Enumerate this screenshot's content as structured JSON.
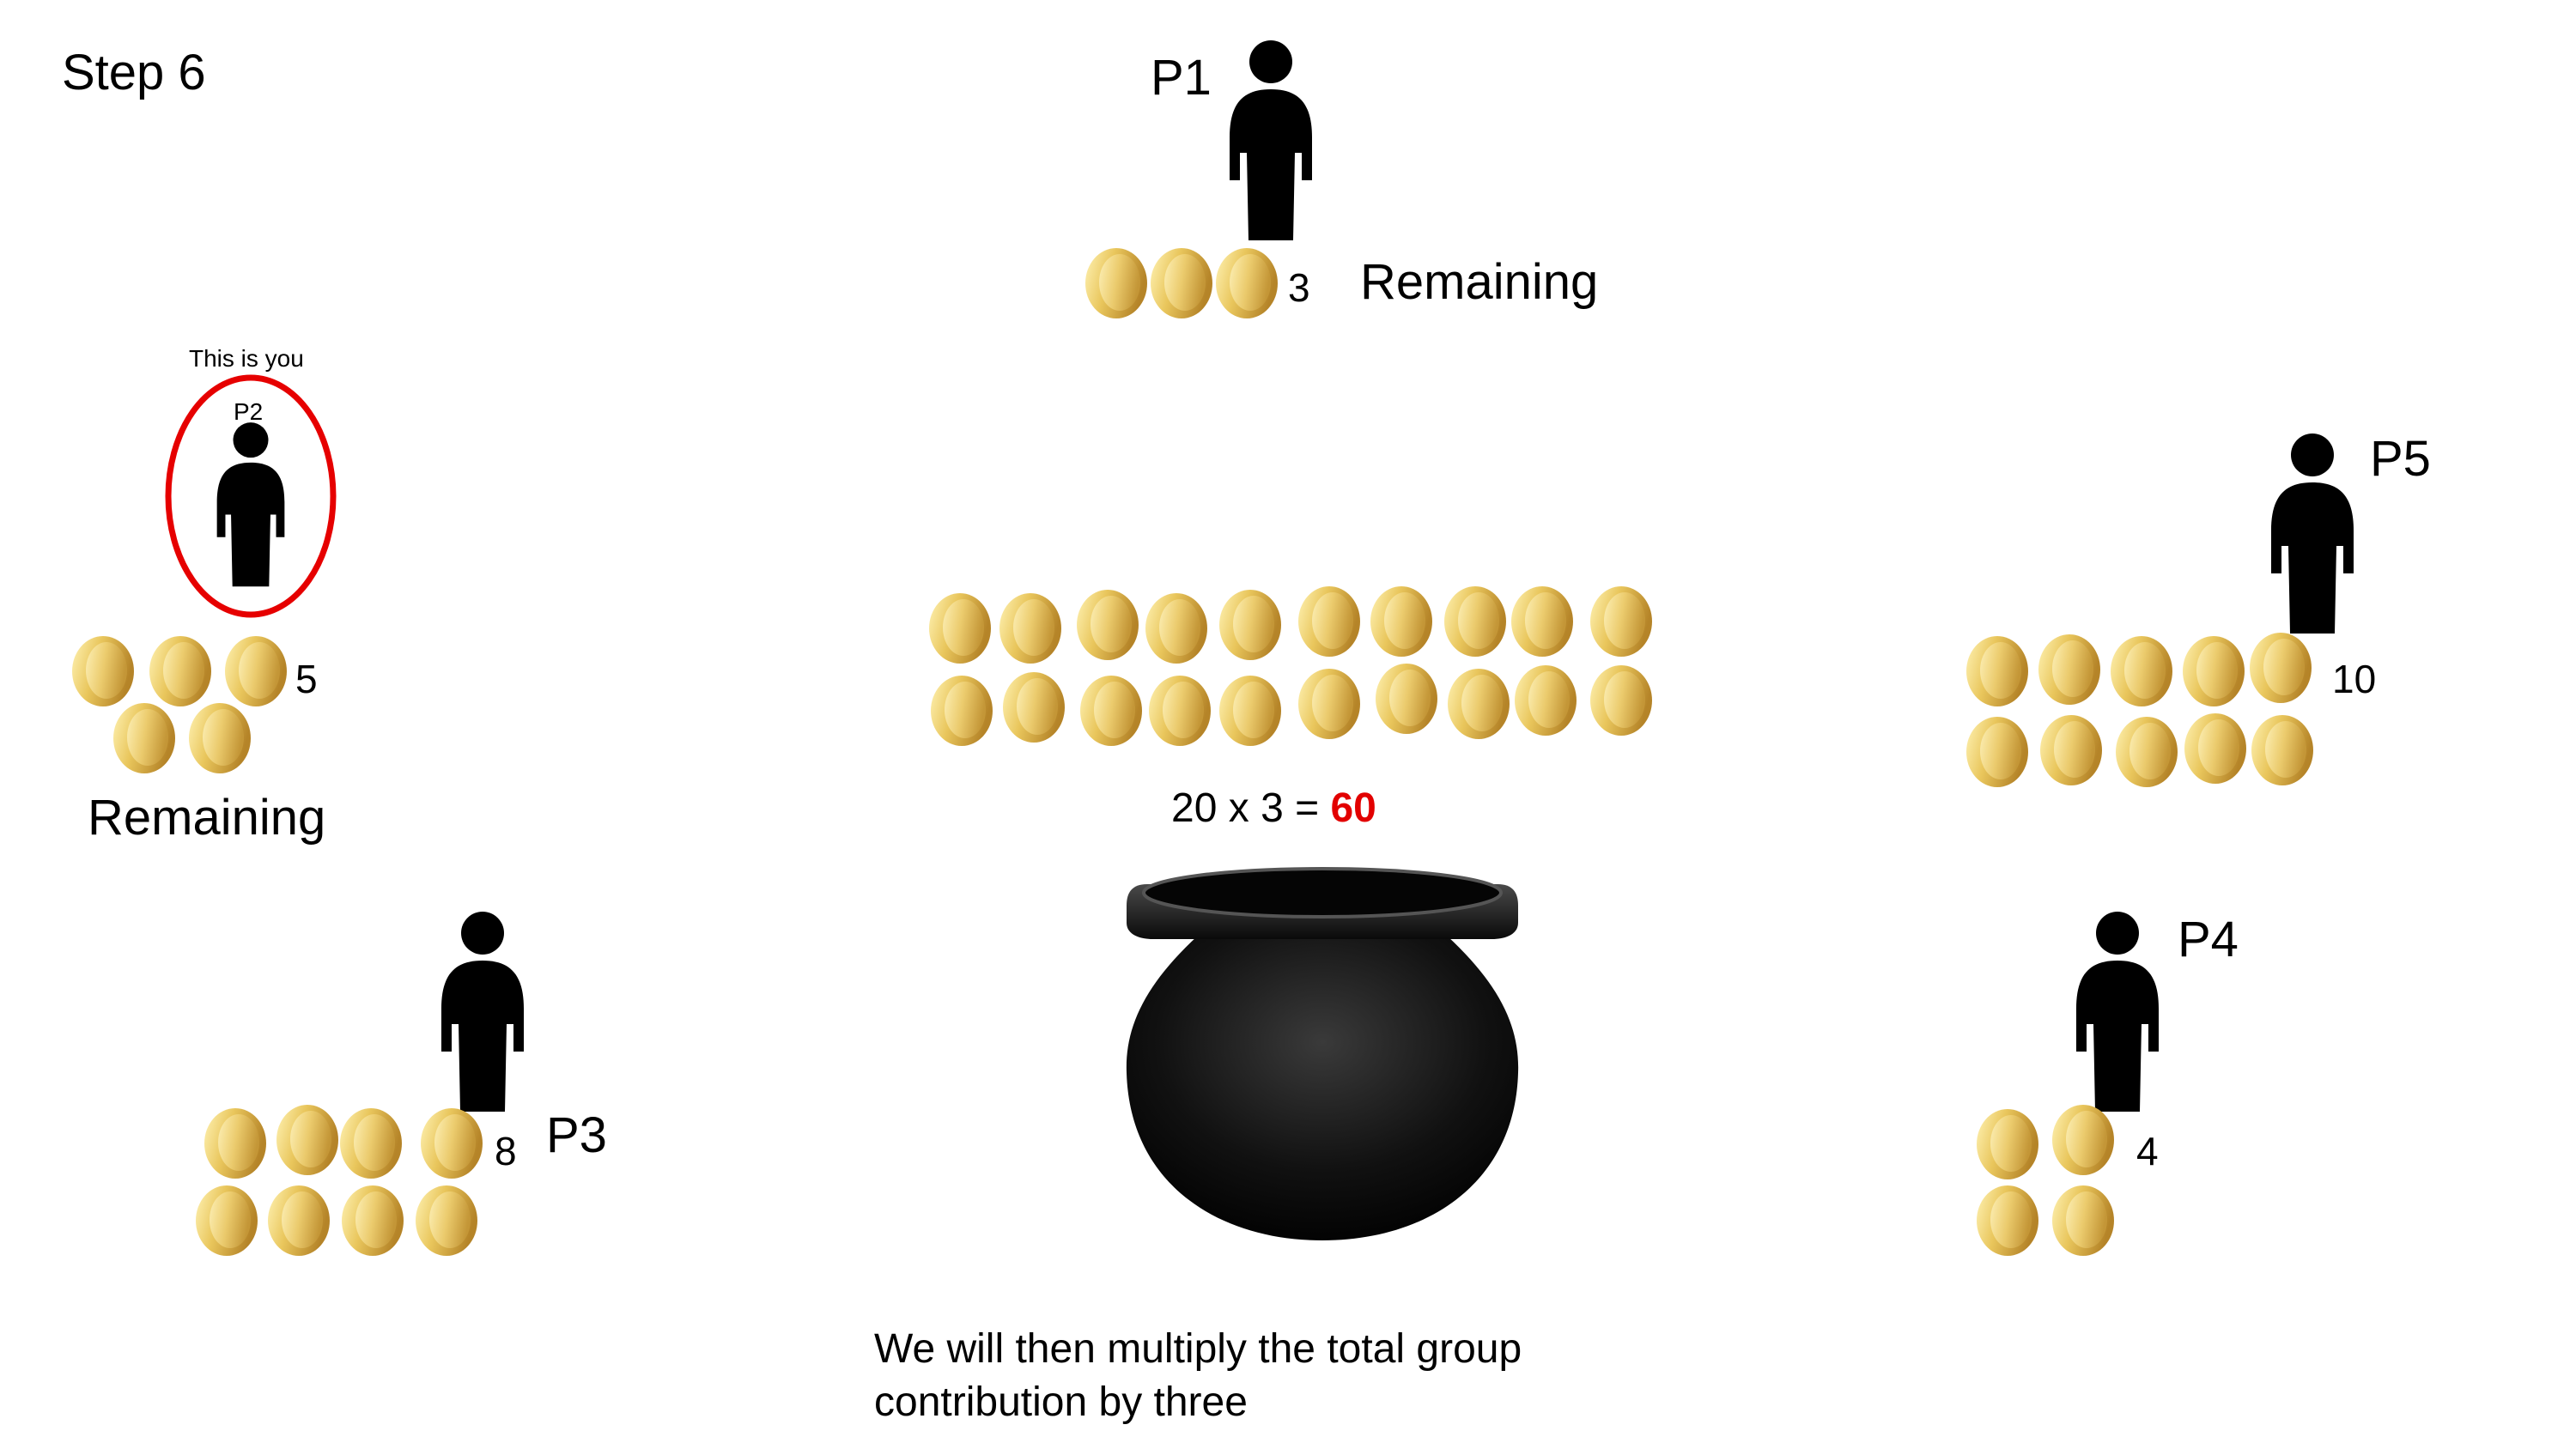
{
  "step_label": "Step 6",
  "players": {
    "p1": {
      "label": "P1",
      "count": "3",
      "status": "Remaining"
    },
    "p2": {
      "label": "P2",
      "count": "5",
      "status": "Remaining",
      "you_label": "This is you"
    },
    "p3": {
      "label": "P3",
      "count": "8"
    },
    "p4": {
      "label": "P4",
      "count": "4"
    },
    "p5": {
      "label": "P5",
      "count": "10"
    }
  },
  "pot": {
    "total": "20",
    "multiplier": "3",
    "result": "60"
  },
  "caption": {
    "line1": "We will then multiply the total group",
    "line2": "contribution by three"
  },
  "colors": {
    "coin_light": "#fff2b0",
    "coin_mid": "#e8c45a",
    "coin_dark": "#b8862a",
    "you_ring": "#e60000",
    "result": "#e20000",
    "figure": "#000000"
  },
  "icons": {
    "figure": "person-silhouette-icon",
    "coin": "gold-coin-icon",
    "pot": "black-pot-icon"
  }
}
